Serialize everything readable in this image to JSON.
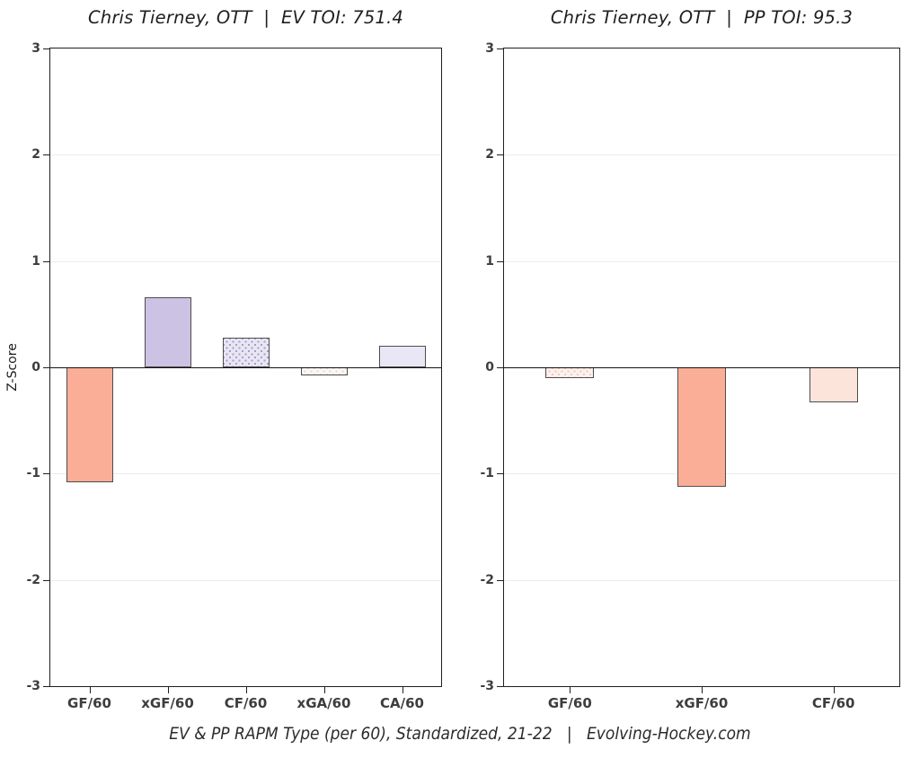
{
  "figure": {
    "background": "#ffffff",
    "caption": "EV & PP RAPM Type (per 60), Standardized, 21-22   |   Evolving-Hockey.com",
    "axis_color": "#1f1f1f",
    "grid_color": "#ececec",
    "zero_line_color": "#141414",
    "tick_label_color": "#3d3d3d"
  },
  "chart_data": [
    {
      "type": "bar",
      "title": "Chris Tierney, OTT  |  EV TOI: 751.4",
      "player": "Chris Tierney",
      "team": "OTT",
      "strength": "EV",
      "toi": 751.4,
      "xlabel": "",
      "ylabel": "Z-Score",
      "ylim": [
        -3,
        3
      ],
      "yticks": [
        3,
        2,
        1,
        0,
        -1,
        -2,
        -3
      ],
      "grid": true,
      "legend": "none",
      "categories": [
        "GF/60",
        "xGF/60",
        "CF/60",
        "xGA/60",
        "CA/60"
      ],
      "values": [
        -1.08,
        0.66,
        0.28,
        -0.08,
        0.2
      ],
      "bar_styles": [
        {
          "fill": "#FBAE97",
          "edge": "#4d4d4d",
          "pattern": "solid"
        },
        {
          "fill": "#CCC2E3",
          "edge": "#4d4d4d",
          "pattern": "solid"
        },
        {
          "fill": "#E9E6F4",
          "edge": "#4d4d4d",
          "pattern": "dots",
          "dot_color": "#A89DC9"
        },
        {
          "fill": "#FBF7F5",
          "edge": "#4d4d4d",
          "pattern": "dots",
          "dot_color": "#EBD8D2"
        },
        {
          "fill": "#E9E6F5",
          "edge": "#4d4d4d",
          "pattern": "solid"
        }
      ]
    },
    {
      "type": "bar",
      "title": "Chris Tierney, OTT  |  PP TOI: 95.3",
      "player": "Chris Tierney",
      "team": "OTT",
      "strength": "PP",
      "toi": 95.3,
      "xlabel": "",
      "ylabel": "",
      "ylim": [
        -3,
        3
      ],
      "yticks": [
        3,
        2,
        1,
        0,
        -1,
        -2,
        -3
      ],
      "grid": true,
      "legend": "none",
      "categories": [
        "GF/60",
        "xGF/60",
        "CF/60"
      ],
      "values": [
        -0.1,
        -1.12,
        -0.33
      ],
      "bar_styles": [
        {
          "fill": "#FCF1ED",
          "edge": "#4d4d4d",
          "pattern": "dots",
          "dot_color": "#F3C8BC"
        },
        {
          "fill": "#FBAE97",
          "edge": "#4d4d4d",
          "pattern": "solid"
        },
        {
          "fill": "#FCE4DB",
          "edge": "#4d4d4d",
          "pattern": "solid"
        }
      ]
    }
  ]
}
